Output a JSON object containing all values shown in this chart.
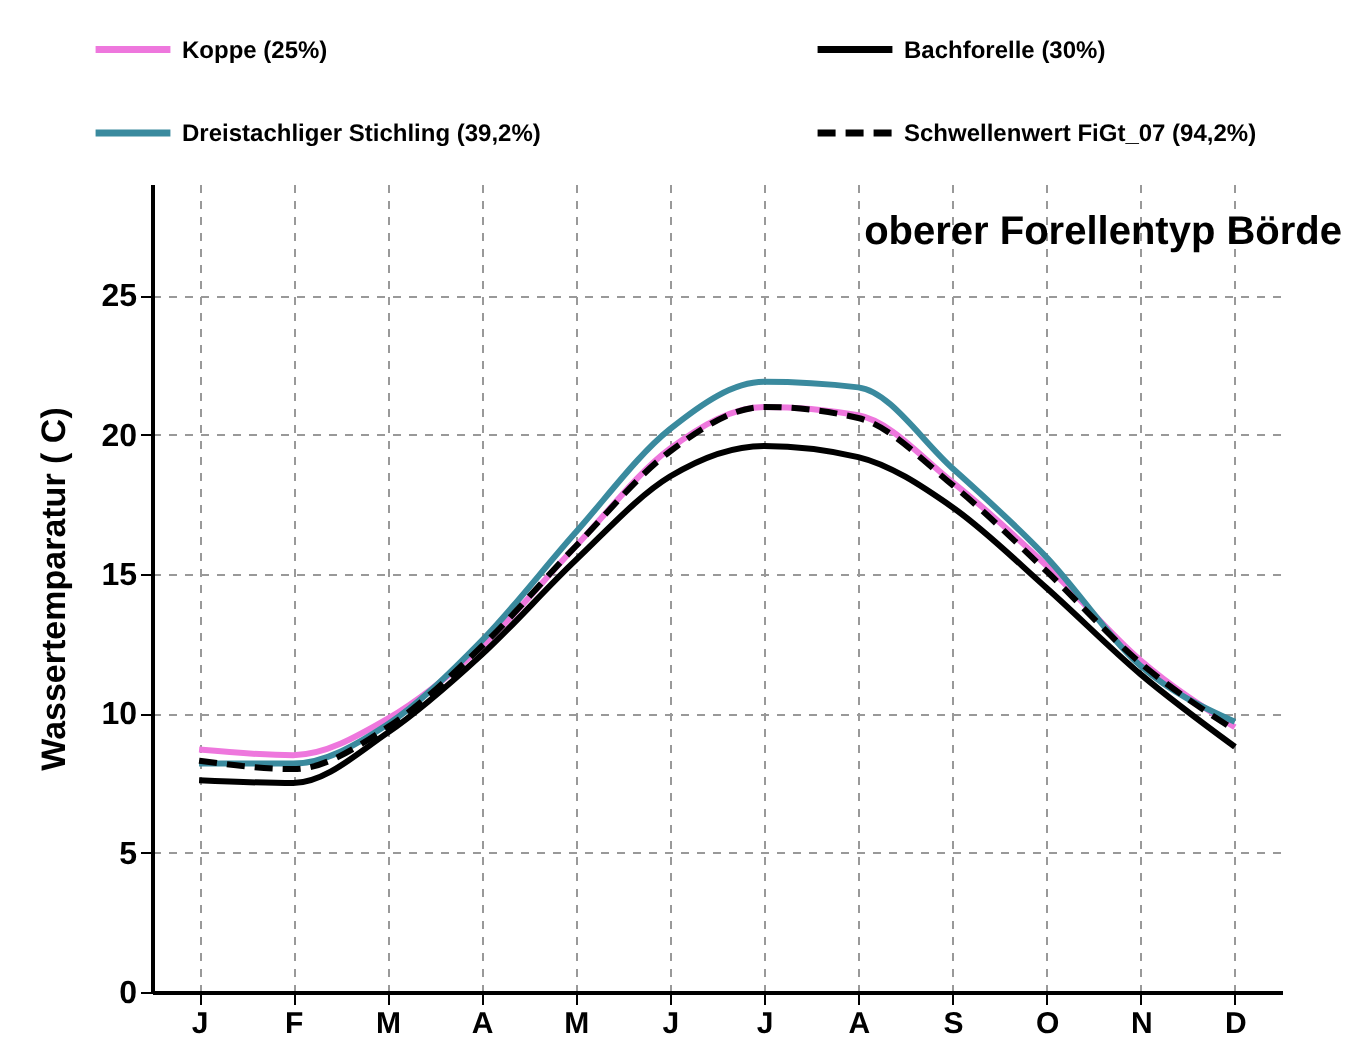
{
  "chart_data": {
    "type": "line",
    "title": "oberer Forellentyp Börde",
    "ylabel": "Wassertemparatur ( C)",
    "categories": [
      "J",
      "F",
      "M",
      "A",
      "M",
      "J",
      "J",
      "A",
      "S",
      "O",
      "N",
      "D"
    ],
    "ylim": [
      0,
      29
    ],
    "yticks": [
      0,
      5,
      10,
      15,
      20,
      25
    ],
    "grid": true,
    "legend": "top",
    "marker": "none",
    "series": [
      {
        "name": "Koppe (25%)",
        "color": "#ee77dd",
        "line_style": "solid",
        "values": [
          8.7,
          8.5,
          9.8,
          12.4,
          16.0,
          19.5,
          21.0,
          20.7,
          18.3,
          15.3,
          11.9,
          9.5
        ]
      },
      {
        "name": "Bachforelle (30%)",
        "color": "#000000",
        "line_style": "solid",
        "values": [
          7.6,
          7.5,
          9.3,
          12.1,
          15.5,
          18.5,
          19.6,
          19.2,
          17.4,
          14.5,
          11.4,
          8.8
        ]
      },
      {
        "name": "Dreistachliger Stichling (39,2%)",
        "color": "#3a8a9e",
        "line_style": "solid",
        "values": [
          8.2,
          8.2,
          9.6,
          12.6,
          16.5,
          20.2,
          21.9,
          21.7,
          18.8,
          15.6,
          11.7,
          9.7
        ]
      },
      {
        "name": "Schwellenwert FiGt_07 (94,2%)",
        "color": "#000000",
        "line_style": "dashed",
        "values": [
          8.3,
          8.0,
          9.5,
          12.4,
          16.0,
          19.4,
          21.0,
          20.6,
          18.2,
          15.1,
          11.8,
          9.4
        ]
      }
    ]
  }
}
